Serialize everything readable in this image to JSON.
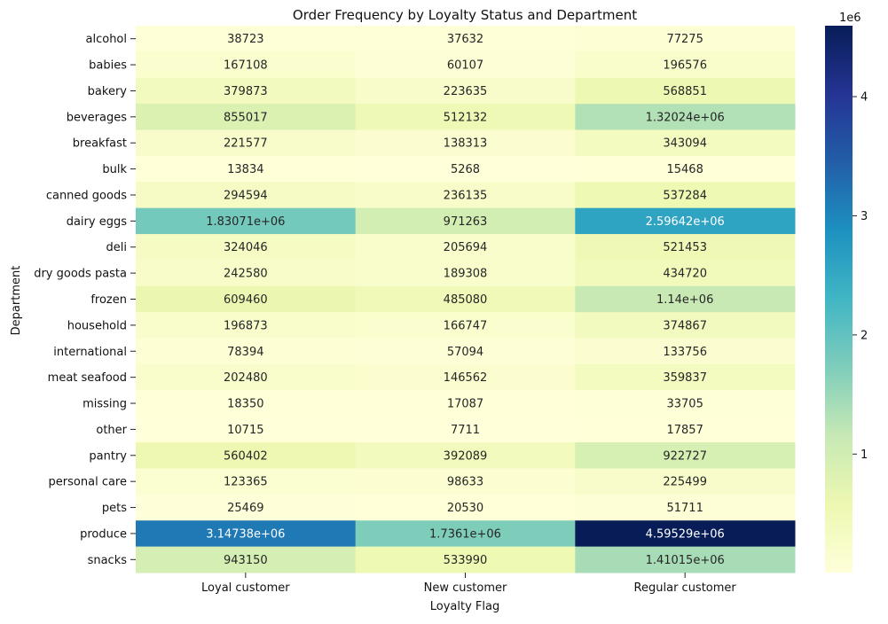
{
  "chart_data": {
    "type": "heatmap",
    "title": "Order Frequency by Loyalty Status and Department",
    "xlabel": "Loyalty Flag",
    "ylabel": "Department",
    "columns": [
      "Loyal customer",
      "New customer",
      "Regular customer"
    ],
    "rows": [
      "alcohol",
      "babies",
      "bakery",
      "beverages",
      "breakfast",
      "bulk",
      "canned goods",
      "dairy eggs",
      "deli",
      "dry goods pasta",
      "frozen",
      "household",
      "international",
      "meat seafood",
      "missing",
      "other",
      "pantry",
      "personal care",
      "pets",
      "produce",
      "snacks"
    ],
    "values": [
      [
        38723,
        37632,
        77275
      ],
      [
        167108,
        60107,
        196576
      ],
      [
        379873,
        223635,
        568851
      ],
      [
        855017,
        512132,
        1320240
      ],
      [
        221577,
        138313,
        343094
      ],
      [
        13834,
        5268,
        15468
      ],
      [
        294594,
        236135,
        537284
      ],
      [
        1830710,
        971263,
        2596420
      ],
      [
        324046,
        205694,
        521453
      ],
      [
        242580,
        189308,
        434720
      ],
      [
        609460,
        485080,
        1140000
      ],
      [
        196873,
        166747,
        374867
      ],
      [
        78394,
        57094,
        133756
      ],
      [
        202480,
        146562,
        359837
      ],
      [
        18350,
        17087,
        33705
      ],
      [
        10715,
        7711,
        17857
      ],
      [
        560402,
        392089,
        922727
      ],
      [
        123365,
        98633,
        225499
      ],
      [
        25469,
        20530,
        51711
      ],
      [
        3147380,
        1736100,
        4595290
      ],
      [
        943150,
        533990,
        1410150
      ]
    ],
    "cell_labels": [
      [
        "38723",
        "37632",
        "77275"
      ],
      [
        "167108",
        "60107",
        "196576"
      ],
      [
        "379873",
        "223635",
        "568851"
      ],
      [
        "855017",
        "512132",
        "1.32024e+06"
      ],
      [
        "221577",
        "138313",
        "343094"
      ],
      [
        "13834",
        "5268",
        "15468"
      ],
      [
        "294594",
        "236135",
        "537284"
      ],
      [
        "1.83071e+06",
        "971263",
        "2.59642e+06"
      ],
      [
        "324046",
        "205694",
        "521453"
      ],
      [
        "242580",
        "189308",
        "434720"
      ],
      [
        "609460",
        "485080",
        "1.14e+06"
      ],
      [
        "196873",
        "166747",
        "374867"
      ],
      [
        "78394",
        "57094",
        "133756"
      ],
      [
        "202480",
        "146562",
        "359837"
      ],
      [
        "18350",
        "17087",
        "33705"
      ],
      [
        "10715",
        "7711",
        "17857"
      ],
      [
        "560402",
        "392089",
        "922727"
      ],
      [
        "123365",
        "98633",
        "225499"
      ],
      [
        "25469",
        "20530",
        "51711"
      ],
      [
        "3.14738e+06",
        "1.7361e+06",
        "4.59529e+06"
      ],
      [
        "943150",
        "533990",
        "1.41015e+06"
      ]
    ],
    "colormap": "YlGnBu",
    "value_range": [
      5268,
      4595290
    ],
    "colorbar": {
      "ticks": [
        1,
        2,
        3,
        4
      ],
      "tick_labels": [
        "1",
        "2",
        "3",
        "4"
      ],
      "multiplier_label": "1e6"
    }
  }
}
